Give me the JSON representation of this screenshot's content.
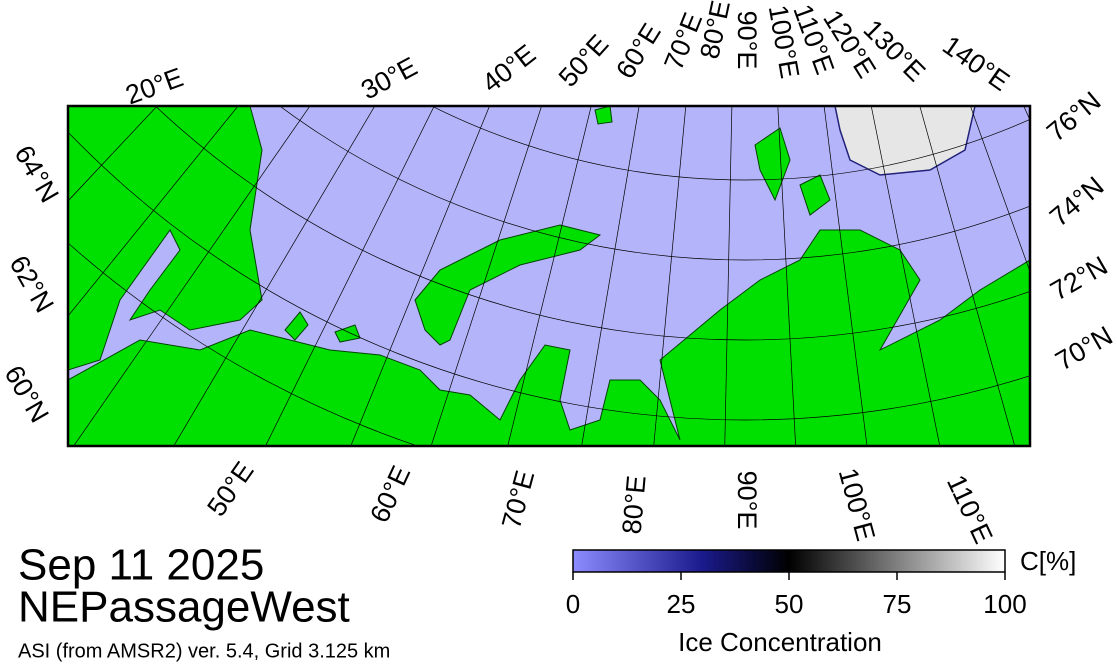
{
  "map": {
    "graticule_labels": {
      "top": [
        "20°E",
        "30°E",
        "40°E",
        "50°E",
        "60°E",
        "70°E",
        "80°E",
        "90°E",
        "100°E",
        "110°E",
        "120°E",
        "130°E",
        "140°E"
      ],
      "left": [
        "64°N",
        "62°N",
        "60°N"
      ],
      "right": [
        "76°N",
        "74°N",
        "72°N",
        "70°N"
      ],
      "bottom": [
        "50°E",
        "60°E",
        "70°E",
        "80°E",
        "90°E",
        "100°E",
        "110°E"
      ]
    }
  },
  "caption": {
    "date": "Sep 11 2025",
    "region": "NEPassageWest",
    "product": "ASI (from AMSR2) ver. 5.4,  Grid 3.125 km"
  },
  "colorbar": {
    "lim": [
      0,
      100
    ],
    "ticks": [
      0,
      25,
      50,
      75,
      100
    ],
    "label": "Ice Concentration",
    "unit": "C[%]"
  }
}
